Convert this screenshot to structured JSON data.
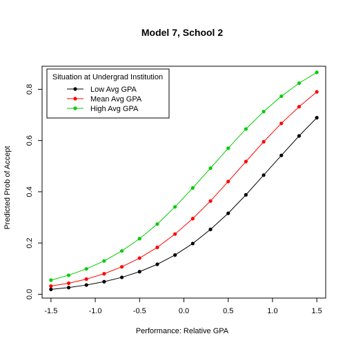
{
  "chart_data": {
    "type": "line",
    "title": "Model 7, School 2",
    "xlabel": "Performance: Relative GPA",
    "ylabel": "Predicted Prob of Accept",
    "xlim": [
      -1.6,
      1.6
    ],
    "ylim": [
      -0.015,
      0.89
    ],
    "xticks": [
      -1.5,
      -1.0,
      -0.5,
      0.0,
      0.5,
      1.0,
      1.5
    ],
    "xtick_labels": [
      "-1.5",
      "-1.0",
      "-0.5",
      "0.0",
      "0.5",
      "1.0",
      "1.5"
    ],
    "yticks": [
      0.0,
      0.2,
      0.4,
      0.6,
      0.8
    ],
    "ytick_labels": [
      "0.0",
      "0.2",
      "0.4",
      "0.6",
      "0.8"
    ],
    "grid": false,
    "legend": {
      "title": "Situation at Undergrad Institution",
      "placement": "top-left"
    },
    "x": [
      -1.5,
      -1.3,
      -1.1,
      -0.9,
      -0.7,
      -0.5,
      -0.3,
      -0.1,
      0.1,
      0.3,
      0.5,
      0.7,
      0.9,
      1.1,
      1.3,
      1.5
    ],
    "series": [
      {
        "name": "Low Avg GPA",
        "color": "#000000",
        "values": [
          0.019,
          0.026,
          0.036,
          0.049,
          0.066,
          0.088,
          0.117,
          0.153,
          0.198,
          0.253,
          0.316,
          0.388,
          0.465,
          0.542,
          0.618,
          0.689
        ]
      },
      {
        "name": "Mean Avg GPA",
        "color": "#ff0000",
        "values": [
          0.032,
          0.043,
          0.059,
          0.08,
          0.107,
          0.141,
          0.183,
          0.235,
          0.295,
          0.364,
          0.44,
          0.518,
          0.595,
          0.667,
          0.732,
          0.79
        ]
      },
      {
        "name": "High Avg GPA",
        "color": "#00cc00",
        "values": [
          0.055,
          0.074,
          0.099,
          0.13,
          0.169,
          0.217,
          0.274,
          0.341,
          0.415,
          0.492,
          0.57,
          0.645,
          0.713,
          0.773,
          0.824,
          0.866
        ]
      }
    ]
  }
}
